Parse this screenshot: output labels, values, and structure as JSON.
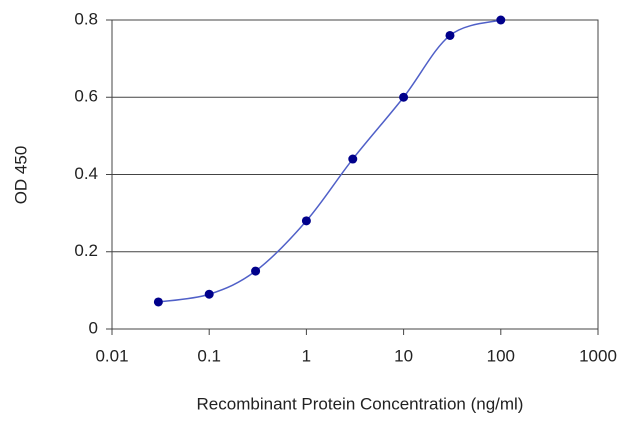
{
  "chart_data": {
    "type": "line",
    "x_label": "Recombinant Protein Concentration (ng/ml)",
    "y_label": "OD 450",
    "x": [
      0.03,
      0.1,
      0.3,
      1,
      3,
      10,
      30,
      100
    ],
    "series": [
      {
        "color": "#00008b",
        "line_color": "#5060c8",
        "values": [
          0.07,
          0.09,
          0.15,
          0.28,
          0.44,
          0.6,
          0.76,
          0.8
        ]
      }
    ],
    "xlim": [
      0.01,
      1000
    ],
    "xticks": [
      0.01,
      0.1,
      1,
      10,
      100,
      1000
    ],
    "x_log": true,
    "ylim": [
      0,
      0.8
    ],
    "yticks": [
      0,
      0.2,
      0.4,
      0.6,
      0.8
    ],
    "grid": true
  }
}
